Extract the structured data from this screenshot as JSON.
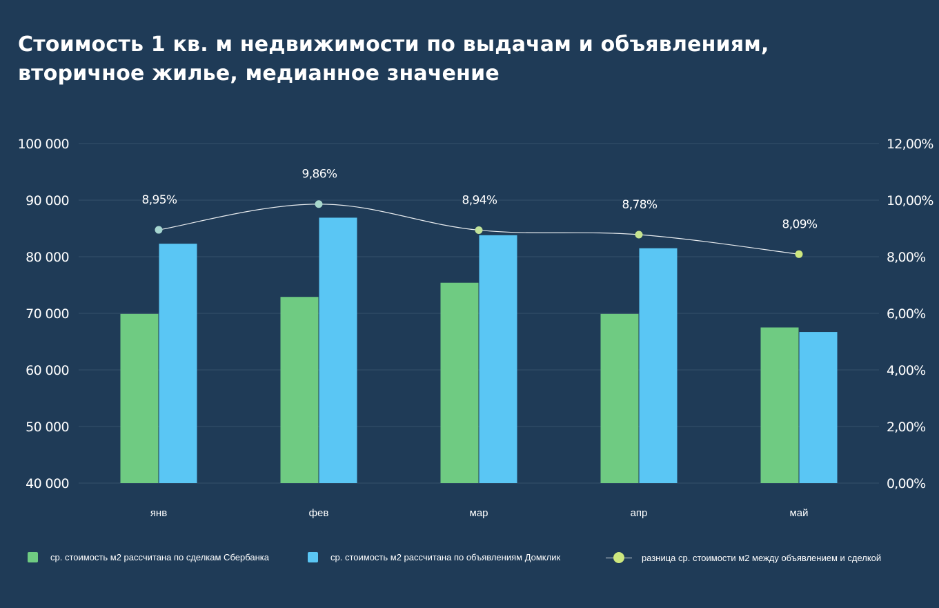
{
  "title": {
    "line1": "Стоимость 1 кв. м недвижимости по выдачам и объявлениям,",
    "line2": "вторичное жилье, медианное значение"
  },
  "chart_data": {
    "type": "bar",
    "categories": [
      "янв",
      "фев",
      "мар",
      "апр",
      "май"
    ],
    "series": [
      {
        "name": "ср. стоимость м2 рассчитана по сделкам Сбербанка",
        "type": "bar",
        "axis": "left",
        "color": "#6fcb82",
        "values": [
          69900,
          72900,
          75400,
          69900,
          67500
        ]
      },
      {
        "name": "ср. стоимость м2 рассчитана по объявлениям Домклик",
        "type": "bar",
        "axis": "left",
        "color": "#5ac6f4",
        "values": [
          82300,
          86900,
          83800,
          81500,
          66700
        ]
      },
      {
        "name": "разница ср. стоимости м2 между объявлением и сделкой",
        "type": "line",
        "axis": "right",
        "color": "#cde77e",
        "values": [
          8.95,
          9.86,
          8.94,
          8.78,
          8.09
        ],
        "labels": [
          "8,95%",
          "9,86%",
          "8,94%",
          "8,78%",
          "8,09%"
        ]
      }
    ],
    "left_axis": {
      "ylim": [
        40000,
        100000
      ],
      "ticks": [
        40000,
        50000,
        60000,
        70000,
        80000,
        90000,
        100000
      ],
      "tick_labels": [
        "40 000",
        "50 000",
        "60 000",
        "70 000",
        "80 000",
        "90 000",
        "100 000"
      ]
    },
    "right_axis": {
      "ylim": [
        0,
        12
      ],
      "ticks": [
        0,
        2,
        4,
        6,
        8,
        10,
        12
      ],
      "tick_labels": [
        "0,00%",
        "2,00%",
        "4,00%",
        "6,00%",
        "8,00%",
        "10,00%",
        "12,00%"
      ]
    },
    "grid": true,
    "legend_position": "bottom"
  },
  "colors": {
    "background": "#1f3b57",
    "gridline": "#34506b",
    "line": "#e8ecef"
  }
}
